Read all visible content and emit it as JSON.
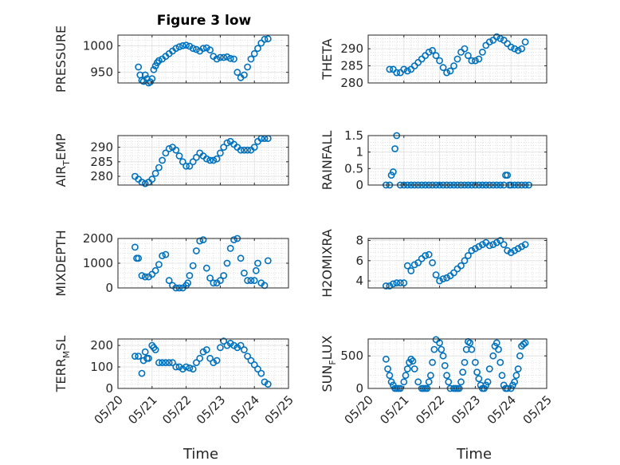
{
  "figure": {
    "title": "Figure 3 low",
    "marker_color": "#0072bd"
  },
  "chart_data": [
    {
      "type": "scatter",
      "title": "Figure 3 low",
      "ylabel": "PRESSURE",
      "ylim": [
        930,
        1020
      ],
      "yticks": [
        950,
        1000
      ],
      "ytick_labels": [
        "950",
        "1000"
      ],
      "xlim": [
        20,
        25
      ],
      "grid": "on",
      "x": [
        20.6,
        20.65,
        20.7,
        20.75,
        20.8,
        20.85,
        20.9,
        20.95,
        21.0,
        21.05,
        21.1,
        21.15,
        21.2,
        21.3,
        21.4,
        21.5,
        21.6,
        21.7,
        21.8,
        21.9,
        22.0,
        22.1,
        22.2,
        22.3,
        22.4,
        22.5,
        22.6,
        22.7,
        22.8,
        22.9,
        23.0,
        23.1,
        23.2,
        23.3,
        23.4,
        23.5,
        23.6,
        23.7,
        23.8,
        23.9,
        24.0,
        24.1,
        24.2,
        24.3,
        24.4
      ],
      "y": [
        960,
        945,
        935,
        933,
        945,
        938,
        930,
        932,
        938,
        955,
        962,
        968,
        972,
        975,
        980,
        985,
        990,
        995,
        998,
        1000,
        1001,
        999,
        995,
        993,
        990,
        995,
        996,
        992,
        980,
        975,
        978,
        978,
        979,
        976,
        975,
        950,
        940,
        945,
        960,
        975,
        985,
        995,
        1005,
        1012,
        1013
      ]
    },
    {
      "type": "scatter",
      "ylabel": "THETA",
      "ylim": [
        280,
        294
      ],
      "yticks": [
        280,
        285,
        290
      ],
      "ytick_labels": [
        "280",
        "285",
        "290"
      ],
      "xlim": [
        20,
        25
      ],
      "grid": "on",
      "x": [
        20.6,
        20.7,
        20.8,
        20.9,
        21.0,
        21.1,
        21.2,
        21.3,
        21.4,
        21.5,
        21.6,
        21.7,
        21.8,
        21.9,
        22.0,
        22.1,
        22.2,
        22.3,
        22.4,
        22.5,
        22.6,
        22.7,
        22.8,
        22.9,
        23.0,
        23.1,
        23.2,
        23.3,
        23.4,
        23.5,
        23.6,
        23.7,
        23.8,
        23.9,
        24.0,
        24.1,
        24.2,
        24.3,
        24.4
      ],
      "y": [
        284,
        284,
        283,
        283,
        284,
        283.5,
        284,
        285,
        286,
        287,
        288,
        289,
        289.5,
        288,
        286.5,
        284.5,
        283,
        283.5,
        285,
        287,
        289,
        290,
        288,
        286.5,
        286.5,
        287,
        289,
        291,
        292,
        292.5,
        293.5,
        293,
        292.5,
        291.5,
        290.5,
        290,
        289.5,
        290,
        292
      ]
    },
    {
      "type": "scatter",
      "ylabel": "AIR_TEMP",
      "ylim": [
        277,
        294
      ],
      "yticks": [
        280,
        285,
        290
      ],
      "ytick_labels": [
        "280",
        "285",
        "290"
      ],
      "xlim": [
        20,
        25
      ],
      "grid": "on",
      "x": [
        20.5,
        20.6,
        20.7,
        20.8,
        20.9,
        21.0,
        21.1,
        21.2,
        21.3,
        21.4,
        21.5,
        21.6,
        21.7,
        21.8,
        21.9,
        22.0,
        22.1,
        22.2,
        22.3,
        22.4,
        22.5,
        22.6,
        22.7,
        22.8,
        22.9,
        23.0,
        23.1,
        23.2,
        23.3,
        23.4,
        23.5,
        23.6,
        23.7,
        23.8,
        23.9,
        24.0,
        24.1,
        24.2,
        24.3,
        24.4
      ],
      "y": [
        280,
        279,
        278,
        277.5,
        278,
        279,
        281,
        283,
        285.5,
        288,
        289.5,
        290,
        289,
        287,
        285,
        283.5,
        283.5,
        285,
        286.5,
        288,
        287,
        286,
        285.5,
        285.5,
        286,
        288,
        290,
        291.5,
        292,
        291,
        290,
        289,
        289,
        289,
        289,
        290,
        292,
        293,
        293,
        293
      ]
    },
    {
      "type": "scatter",
      "ylabel": "RAINFALL",
      "ylim": [
        0,
        1.5
      ],
      "yticks": [
        0,
        0.5,
        1,
        1.5
      ],
      "ytick_labels": [
        "0",
        "0.5",
        "1",
        "1.5"
      ],
      "xlim": [
        20,
        25
      ],
      "grid": "on",
      "x": [
        20.5,
        20.6,
        20.65,
        20.7,
        20.75,
        20.8,
        20.9,
        21.0,
        21.1,
        21.2,
        21.3,
        21.4,
        21.5,
        21.6,
        21.7,
        21.8,
        21.9,
        22.0,
        22.1,
        22.2,
        22.3,
        22.4,
        22.5,
        22.6,
        22.7,
        22.8,
        22.9,
        23.0,
        23.1,
        23.2,
        23.3,
        23.4,
        23.5,
        23.6,
        23.7,
        23.8,
        23.85,
        23.9,
        23.95,
        24.0,
        24.1,
        24.2,
        24.3,
        24.4,
        24.5
      ],
      "y": [
        0,
        0,
        0.3,
        0.4,
        1.1,
        1.5,
        0,
        0,
        0,
        0,
        0,
        0,
        0,
        0,
        0,
        0,
        0,
        0,
        0,
        0,
        0,
        0,
        0,
        0,
        0,
        0,
        0,
        0,
        0,
        0,
        0,
        0,
        0,
        0,
        0,
        0,
        0.3,
        0.3,
        0,
        0,
        0,
        0,
        0,
        0,
        0
      ]
    },
    {
      "type": "scatter",
      "ylabel": "MIXDEPTH",
      "ylim": [
        0,
        2000
      ],
      "yticks": [
        0,
        1000,
        2000
      ],
      "ytick_labels": [
        "0",
        "1000",
        "2000"
      ],
      "xlim": [
        20,
        25
      ],
      "grid": "on",
      "x": [
        20.5,
        20.55,
        20.6,
        20.7,
        20.8,
        20.9,
        21.0,
        21.1,
        21.2,
        21.3,
        21.4,
        21.5,
        21.6,
        21.7,
        21.8,
        21.9,
        22.0,
        22.05,
        22.1,
        22.2,
        22.3,
        22.4,
        22.5,
        22.6,
        22.7,
        22.8,
        22.9,
        23.0,
        23.1,
        23.2,
        23.3,
        23.4,
        23.5,
        23.6,
        23.7,
        23.8,
        23.9,
        24.0,
        24.05,
        24.1,
        24.2,
        24.3,
        24.4
      ],
      "y": [
        1650,
        1200,
        1200,
        500,
        450,
        450,
        550,
        700,
        950,
        1300,
        1350,
        300,
        100,
        0,
        0,
        0,
        100,
        200,
        500,
        900,
        1500,
        1900,
        1950,
        800,
        400,
        200,
        200,
        300,
        500,
        1000,
        1600,
        1950,
        2000,
        1200,
        600,
        300,
        300,
        300,
        700,
        1000,
        200,
        100,
        1100
      ]
    },
    {
      "type": "scatter",
      "ylabel": "H2OMIXRA",
      "ylim": [
        3.3,
        8.2
      ],
      "yticks": [
        4,
        6,
        8
      ],
      "ytick_labels": [
        "4",
        "6",
        "8"
      ],
      "xlim": [
        20,
        25
      ],
      "grid": "on",
      "x": [
        20.5,
        20.6,
        20.7,
        20.8,
        20.9,
        21.0,
        21.1,
        21.2,
        21.3,
        21.4,
        21.5,
        21.6,
        21.7,
        21.8,
        21.9,
        22.0,
        22.1,
        22.2,
        22.3,
        22.4,
        22.5,
        22.6,
        22.7,
        22.8,
        22.9,
        23.0,
        23.1,
        23.2,
        23.3,
        23.4,
        23.5,
        23.6,
        23.7,
        23.8,
        23.9,
        24.0,
        24.1,
        24.2,
        24.3,
        24.4
      ],
      "y": [
        3.5,
        3.5,
        3.7,
        3.8,
        3.8,
        3.8,
        5.5,
        5,
        5.6,
        5.8,
        6.2,
        6.5,
        6.6,
        5.8,
        4.6,
        4,
        4.2,
        4.3,
        4.5,
        4.8,
        5.2,
        5.5,
        6,
        6.5,
        7,
        7.2,
        7.4,
        7.6,
        7.8,
        7.5,
        7.6,
        7.8,
        8,
        7.6,
        7,
        6.8,
        7,
        7.2,
        7.4,
        7.6
      ]
    },
    {
      "type": "scatter",
      "ylabel": "TERR_MSL",
      "ylim": [
        0,
        230
      ],
      "yticks": [
        0,
        100,
        200
      ],
      "ytick_labels": [
        "0",
        "100",
        "200"
      ],
      "xlim": [
        20,
        25
      ],
      "grid": "on",
      "x": [
        20.5,
        20.6,
        20.7,
        20.75,
        20.8,
        20.85,
        20.9,
        21.0,
        21.05,
        21.1,
        21.2,
        21.3,
        21.4,
        21.5,
        21.6,
        21.7,
        21.8,
        21.9,
        22.0,
        22.1,
        22.2,
        22.3,
        22.4,
        22.5,
        22.6,
        22.7,
        22.8,
        22.9,
        23.0,
        23.1,
        23.2,
        23.3,
        23.4,
        23.5,
        23.6,
        23.7,
        23.8,
        23.9,
        24.0,
        24.1,
        24.2,
        24.3,
        24.4
      ],
      "y": [
        150,
        150,
        70,
        130,
        170,
        140,
        140,
        200,
        190,
        180,
        120,
        120,
        120,
        120,
        120,
        100,
        100,
        90,
        100,
        95,
        90,
        120,
        140,
        170,
        180,
        140,
        120,
        130,
        190,
        220,
        200,
        210,
        200,
        190,
        200,
        180,
        150,
        130,
        110,
        90,
        70,
        30,
        20
      ]
    },
    {
      "type": "scatter",
      "ylabel": "SUN_FLUX",
      "ylim": [
        0,
        760
      ],
      "yticks": [
        0,
        500
      ],
      "ytick_labels": [
        "0",
        "500"
      ],
      "xlim": [
        20,
        25
      ],
      "grid": "on",
      "x": [
        20.5,
        20.55,
        20.6,
        20.65,
        20.7,
        20.75,
        20.8,
        20.85,
        20.9,
        21.0,
        21.05,
        21.1,
        21.15,
        21.2,
        21.25,
        21.3,
        21.4,
        21.5,
        21.55,
        21.6,
        21.65,
        21.7,
        21.75,
        21.8,
        21.85,
        21.9,
        22.0,
        22.05,
        22.1,
        22.15,
        22.2,
        22.25,
        22.3,
        22.4,
        22.45,
        22.5,
        22.55,
        22.6,
        22.65,
        22.7,
        22.75,
        22.8,
        22.85,
        22.9,
        23.0,
        23.05,
        23.1,
        23.15,
        23.2,
        23.25,
        23.3,
        23.35,
        23.4,
        23.5,
        23.55,
        23.6,
        23.65,
        23.7,
        23.75,
        23.8,
        23.85,
        23.9,
        24.0,
        24.05,
        24.1,
        24.15,
        24.2,
        24.25,
        24.3,
        24.35,
        24.4
      ],
      "y": [
        450,
        300,
        200,
        100,
        50,
        0,
        0,
        0,
        0,
        100,
        200,
        300,
        400,
        450,
        420,
        300,
        100,
        0,
        0,
        0,
        0,
        100,
        200,
        400,
        600,
        750,
        700,
        600,
        500,
        350,
        200,
        100,
        0,
        0,
        0,
        0,
        0,
        100,
        250,
        400,
        600,
        720,
        700,
        600,
        400,
        250,
        150,
        50,
        0,
        0,
        50,
        100,
        300,
        500,
        650,
        700,
        600,
        400,
        200,
        50,
        0,
        0,
        0,
        50,
        100,
        200,
        300,
        500,
        650,
        680,
        700
      ]
    }
  ],
  "x_axis": {
    "ticks": [
      20,
      21,
      22,
      23,
      24,
      25
    ],
    "tick_labels": [
      "05/20",
      "05/21",
      "05/22",
      "05/23",
      "05/24",
      "05/25"
    ],
    "xlabel": "Time"
  }
}
